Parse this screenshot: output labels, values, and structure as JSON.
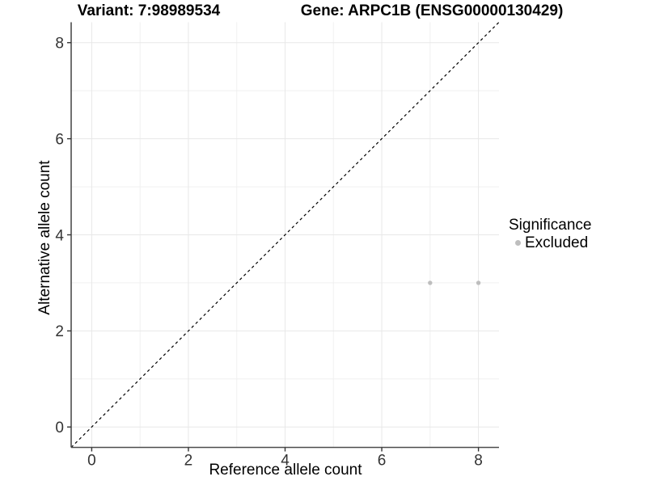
{
  "figure": {
    "title_variant": "Variant: 7:98989534",
    "title_gene": "Gene: ARPC1B (ENSG00000130429)"
  },
  "chart_data": {
    "type": "scatter",
    "xlabel": "Reference allele count",
    "ylabel": "Alternative allele count",
    "xlim": [
      -0.425,
      8.425
    ],
    "ylim": [
      -0.425,
      8.425
    ],
    "x_ticks": [
      0,
      2,
      4,
      6,
      8
    ],
    "y_ticks": [
      0,
      2,
      4,
      6,
      8
    ],
    "x_minor_gridlines": [
      1,
      3,
      5,
      7
    ],
    "y_minor_gridlines": [
      1,
      3,
      5,
      7
    ],
    "grid": "on",
    "legend_position": "right",
    "reference_line": {
      "kind": "identity y = x",
      "style": "dashed",
      "color": "#000000",
      "x1": -0.425,
      "y1": -0.425,
      "x2": 8.425,
      "y2": 8.425
    },
    "series": [
      {
        "name": "Excluded",
        "color": "#BEBEBE",
        "points": [
          {
            "x": 7,
            "y": 3
          },
          {
            "x": 8,
            "y": 3
          }
        ]
      }
    ]
  },
  "legend": {
    "title": "Significance",
    "items": [
      {
        "label": "Excluded",
        "color": "#BEBEBE",
        "marker": "circle-icon"
      }
    ]
  },
  "colors": {
    "background": "#FFFFFF",
    "point_excluded": "#BEBEBE",
    "grid_major": "#E8E8E8",
    "grid_minor": "#F0F0F0",
    "axis_line": "#4D4D4D",
    "tick_mark": "#333333",
    "tick_label": "#333333",
    "text": "#000000"
  }
}
